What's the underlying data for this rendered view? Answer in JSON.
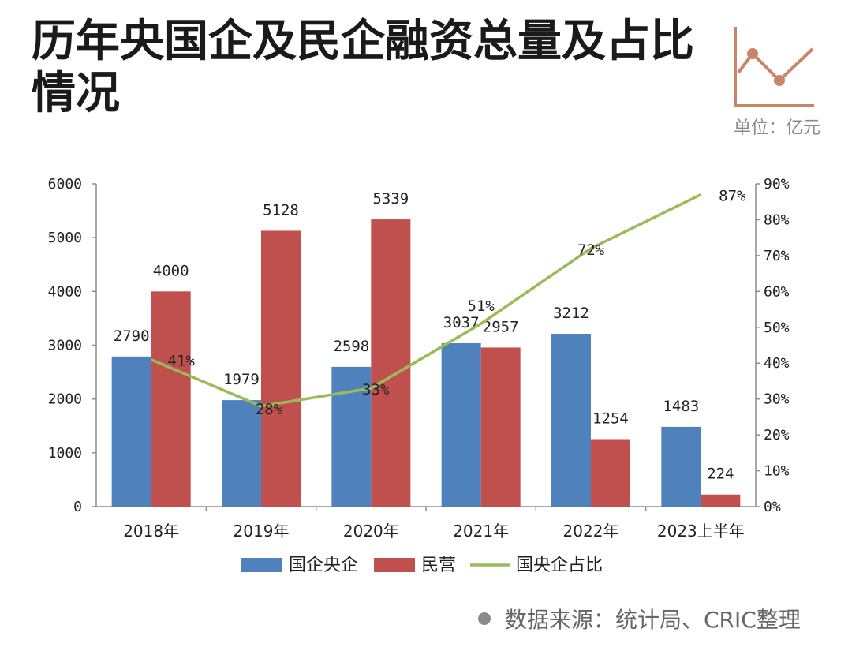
{
  "header": {
    "title": "历年央国企及民企融资总量及占比情况",
    "unit": "单位：亿元"
  },
  "footer": {
    "source": "数据来源：统计局、CRIC整理"
  },
  "colors": {
    "soe": "#4f81bd",
    "private": "#c0504d",
    "share": "#9bbb59",
    "logo": "#c9846a"
  },
  "chart_data": {
    "type": "bar",
    "categories": [
      "2018年",
      "2019年",
      "2020年",
      "2021年",
      "2022年",
      "2023上半年"
    ],
    "series": [
      {
        "name": "国企央企",
        "type": "bar",
        "axis": "left",
        "values": [
          2790,
          1979,
          2598,
          3037,
          3212,
          1483
        ],
        "labels": [
          "2790",
          "1979",
          "2598",
          "3037",
          "3212",
          "1483"
        ]
      },
      {
        "name": "民营",
        "type": "bar",
        "axis": "left",
        "values": [
          4000,
          5128,
          5339,
          2957,
          1254,
          224
        ],
        "labels": [
          "4000",
          "5128",
          "5339",
          "2957",
          "1254",
          "224"
        ]
      },
      {
        "name": "国央企占比",
        "type": "line",
        "axis": "right",
        "values": [
          41,
          28,
          33,
          51,
          72,
          87
        ],
        "labels": [
          "41%",
          "28%",
          "33%",
          "51%",
          "72%",
          "87%"
        ]
      }
    ],
    "yleft": {
      "min": 0,
      "max": 6000,
      "ticks": [
        "0",
        "1000",
        "2000",
        "3000",
        "4000",
        "5000",
        "6000"
      ]
    },
    "yright": {
      "min": 0,
      "max": 90,
      "ticks": [
        "0%",
        "10%",
        "20%",
        "30%",
        "40%",
        "50%",
        "60%",
        "70%",
        "80%",
        "90%"
      ]
    },
    "grid": false,
    "legend_position": "bottom"
  }
}
